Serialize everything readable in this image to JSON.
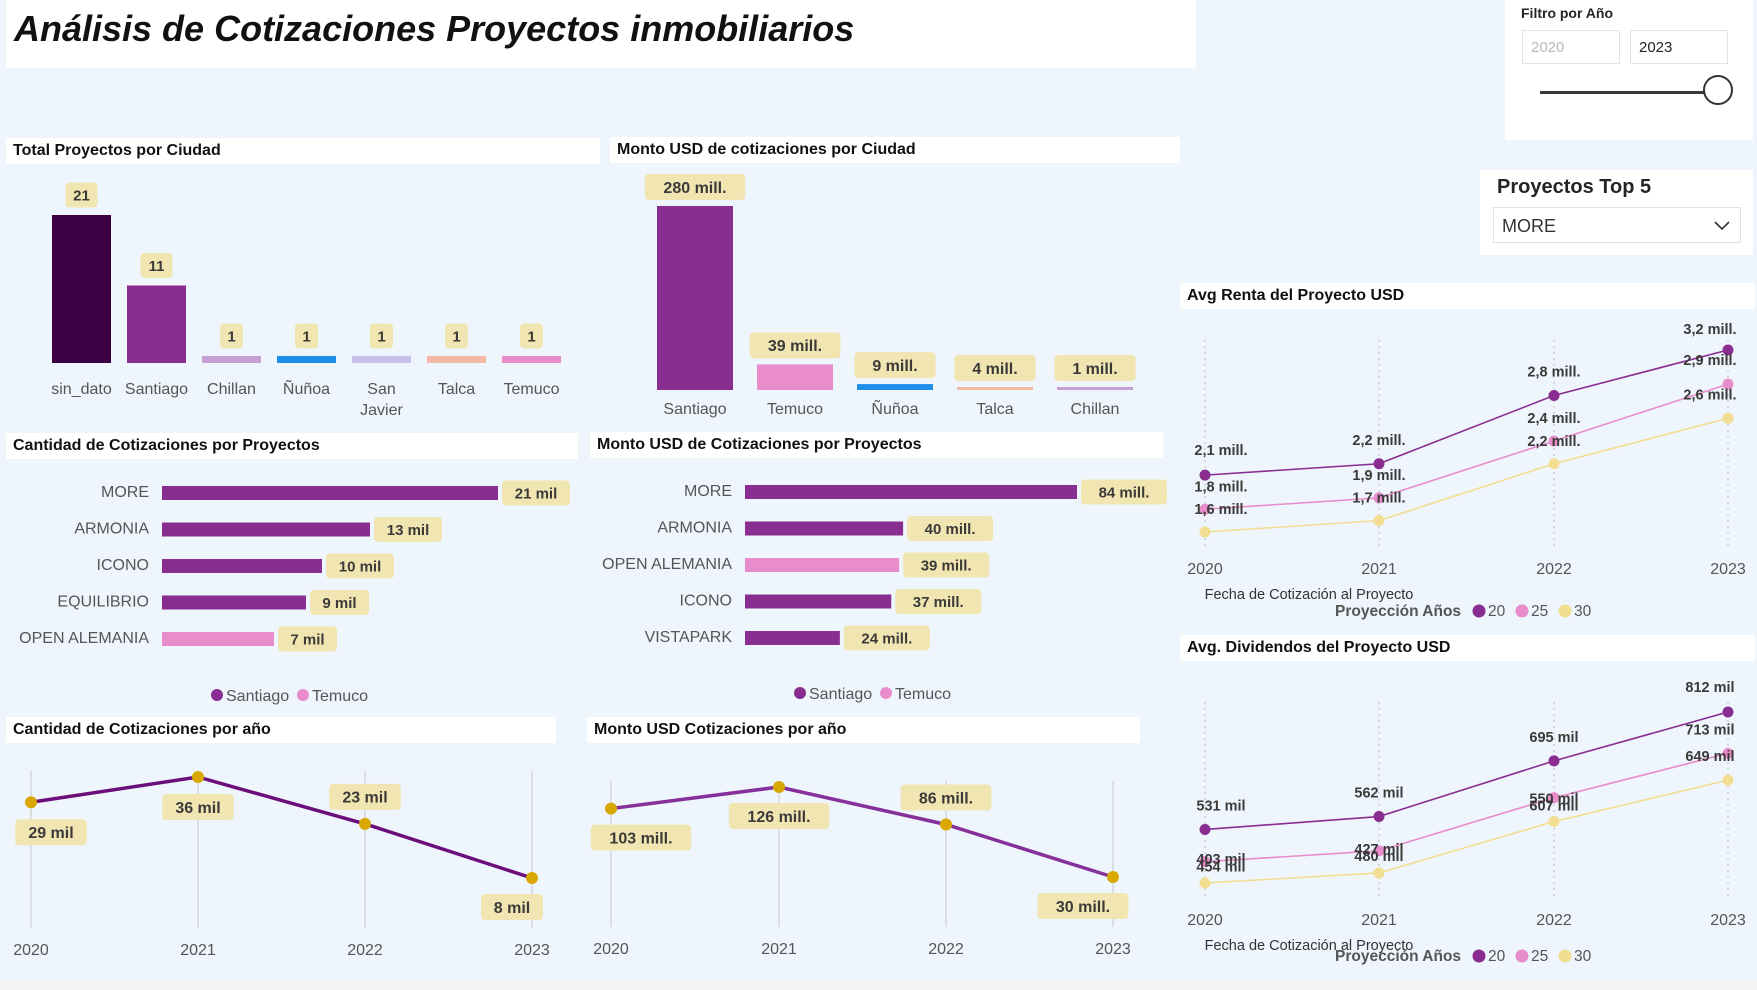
{
  "title": "Análisis de Cotizaciones Proyectos inmobiliarios",
  "colors": {
    "santiago": "#8a2d91",
    "temuco": "#e88ccc",
    "label_bg": "#f1e6b2",
    "c20": "#8a2d91",
    "c25": "#e88ccc",
    "c30": "#f2dd91",
    "year_line1": "#6b0e7a",
    "year_line2": "#86309a",
    "gold": "#d8a800"
  },
  "filter": {
    "title": "Filtro por Año",
    "from": "2020",
    "to": "2023"
  },
  "top5": {
    "title": "Proyectos Top 5",
    "selected": "MORE"
  },
  "chart_data": [
    {
      "id": "proyectos_ciudad",
      "type": "bar",
      "title": "Total Proyectos por Ciudad",
      "categories": [
        "sin_dato",
        "Santiago",
        "Chillan",
        "Ñuñoa",
        "San Javier",
        "Talca",
        "Temuco"
      ],
      "values": [
        21,
        11,
        1,
        1,
        1,
        1,
        1
      ],
      "labels": [
        "21",
        "11",
        "1",
        "1",
        "1",
        "1",
        "1"
      ],
      "colors": [
        "#3a0043",
        "#8a2d91",
        "#c7a0d3",
        "#1d8fe8",
        "#c9c1ec",
        "#f4b8a6",
        "#e88ccc"
      ]
    },
    {
      "id": "monto_ciudad",
      "type": "bar",
      "title": "Monto USD de cotizaciones por Ciudad",
      "categories": [
        "Santiago",
        "Temuco",
        "Ñuñoa",
        "Talca",
        "Chillan"
      ],
      "values": [
        280,
        39,
        9,
        4,
        1
      ],
      "labels": [
        "280 mill.",
        "39 mill.",
        "9 mill.",
        "4 mill.",
        "1 mill."
      ],
      "colors": [
        "#8a2d91",
        "#e88ccc",
        "#1d8fe8",
        "#f4b8a6",
        "#c7a0d3"
      ]
    },
    {
      "id": "cant_proyectos",
      "type": "bar",
      "orientation": "horizontal",
      "title": "Cantidad de Cotizaciones por Proyectos",
      "categories": [
        "MORE",
        "ARMONIA",
        "ICONO",
        "EQUILIBRIO",
        "OPEN ALEMANIA"
      ],
      "values": [
        21,
        13,
        10,
        9,
        7
      ],
      "labels": [
        "21 mil",
        "13 mil",
        "10 mil",
        "9 mil",
        "7 mil"
      ],
      "city": [
        "Santiago",
        "Santiago",
        "Santiago",
        "Santiago",
        "Temuco"
      ],
      "legend": [
        "Santiago",
        "Temuco"
      ]
    },
    {
      "id": "monto_proyectos",
      "type": "bar",
      "orientation": "horizontal",
      "title": "Monto USD de Cotizaciones por Proyectos",
      "categories": [
        "MORE",
        "ARMONIA",
        "OPEN ALEMANIA",
        "ICONO",
        "VISTAPARK"
      ],
      "values": [
        84,
        40,
        39,
        37,
        24
      ],
      "labels": [
        "84 mill.",
        "40 mill.",
        "39 mill.",
        "37 mill.",
        "24 mill."
      ],
      "city": [
        "Santiago",
        "Santiago",
        "Temuco",
        "Santiago",
        "Santiago"
      ],
      "legend": [
        "Santiago",
        "Temuco"
      ]
    },
    {
      "id": "cant_anio",
      "type": "line",
      "title": "Cantidad de Cotizaciones por año",
      "x": [
        "2020",
        "2021",
        "2022",
        "2023"
      ],
      "values": [
        29,
        36,
        23,
        8
      ],
      "labels": [
        "29 mil",
        "36 mil",
        "23 mil",
        "8 mil"
      ]
    },
    {
      "id": "monto_anio",
      "type": "line",
      "title": "Monto USD Cotizaciones por año",
      "x": [
        "2020",
        "2021",
        "2022",
        "2023"
      ],
      "values": [
        103,
        126,
        86,
        30
      ],
      "labels": [
        "103 mill.",
        "126 mill.",
        "86 mill.",
        "30 mill."
      ]
    },
    {
      "id": "renta",
      "type": "line",
      "title": "Avg Renta del Proyecto USD",
      "xlabel": "Fecha de Cotización al Proyecto",
      "x": [
        "2020",
        "2021",
        "2022",
        "2023"
      ],
      "legend_title": "Proyección Años",
      "series": [
        {
          "name": "20",
          "values": [
            2.1,
            2.2,
            2.8,
            3.2
          ],
          "labels": [
            "2,1 mill.",
            "2,2 mill.",
            "2,8 mill.",
            "3,2 mill."
          ]
        },
        {
          "name": "25",
          "values": [
            1.8,
            1.9,
            2.4,
            2.9
          ],
          "labels": [
            "1,8 mill.",
            "1,9 mill.",
            "2,4 mill.",
            "2,9 mill."
          ]
        },
        {
          "name": "30",
          "values": [
            1.6,
            1.7,
            2.2,
            2.6
          ],
          "labels": [
            "1,6 mill.",
            "1,7 mill.",
            "2,2 mill.",
            "2,6 mill."
          ]
        }
      ]
    },
    {
      "id": "dividendos",
      "type": "line",
      "title": "Avg. Dividendos del Proyecto USD",
      "xlabel": "Fecha de Cotización al Proyecto",
      "x": [
        "2020",
        "2021",
        "2022",
        "2023"
      ],
      "legend_title": "Proyección Años",
      "series": [
        {
          "name": "20",
          "values": [
            531,
            562,
            695,
            812
          ],
          "labels": [
            "531 mil",
            "562 mil",
            "695 mil",
            "812 mil"
          ]
        },
        {
          "name": "25",
          "values": [
            454,
            480,
            607,
            713
          ],
          "labels": [
            "454 mil",
            "480 mil",
            "607 mil",
            "713 mil"
          ]
        },
        {
          "name": "30",
          "values": [
            403,
            427,
            550,
            649
          ],
          "labels": [
            "403 mil",
            "427 mil",
            "550 mil",
            "649 mil"
          ]
        }
      ]
    }
  ]
}
